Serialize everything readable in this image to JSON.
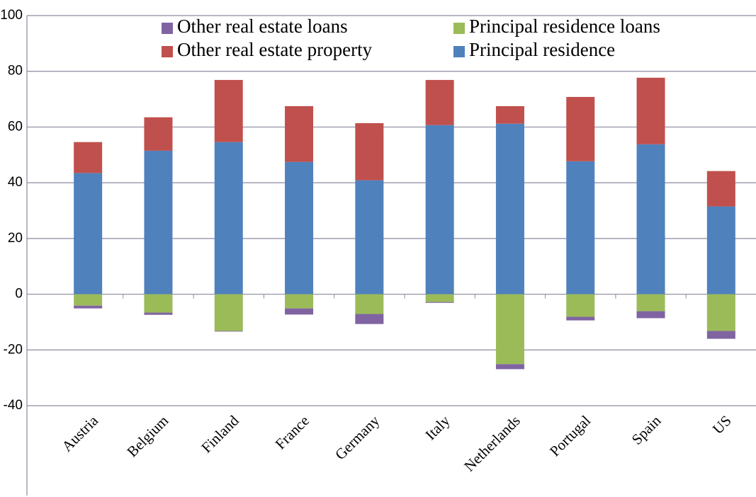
{
  "chart_data": {
    "type": "stacked-bar",
    "categories": [
      "Austria",
      "Belgium",
      "Finland",
      "France",
      "Germany",
      "Italy",
      "Netherlands",
      "Portugal",
      "Spain",
      "US"
    ],
    "series": [
      {
        "name": "Other real estate loans",
        "color": "#8064a2",
        "values": [
          -1.0,
          -0.8,
          -0.2,
          -2.2,
          -3.6,
          -0.3,
          -1.8,
          -1.3,
          -2.5,
          -2.8
        ]
      },
      {
        "name": "Principal residence loans",
        "color": "#9bbb59",
        "values": [
          -4.1,
          -6.6,
          -13.2,
          -5.1,
          -7.1,
          -2.8,
          -25.1,
          -8.1,
          -6.1,
          -13.2
        ]
      },
      {
        "name": "Other real estate property",
        "color": "#c0504d",
        "values": [
          11.1,
          12.0,
          22.3,
          20.0,
          20.5,
          16.2,
          6.3,
          23.1,
          23.9,
          12.7
        ]
      },
      {
        "name": "Principal residence",
        "color": "#4f81bd",
        "values": [
          43.5,
          51.5,
          54.6,
          47.5,
          40.9,
          60.7,
          61.2,
          47.7,
          53.8,
          31.5
        ]
      }
    ],
    "ylim": [
      -40,
      100
    ],
    "yticks": [
      -40,
      -20,
      0,
      20,
      40,
      60,
      80,
      100
    ],
    "grid": true
  }
}
